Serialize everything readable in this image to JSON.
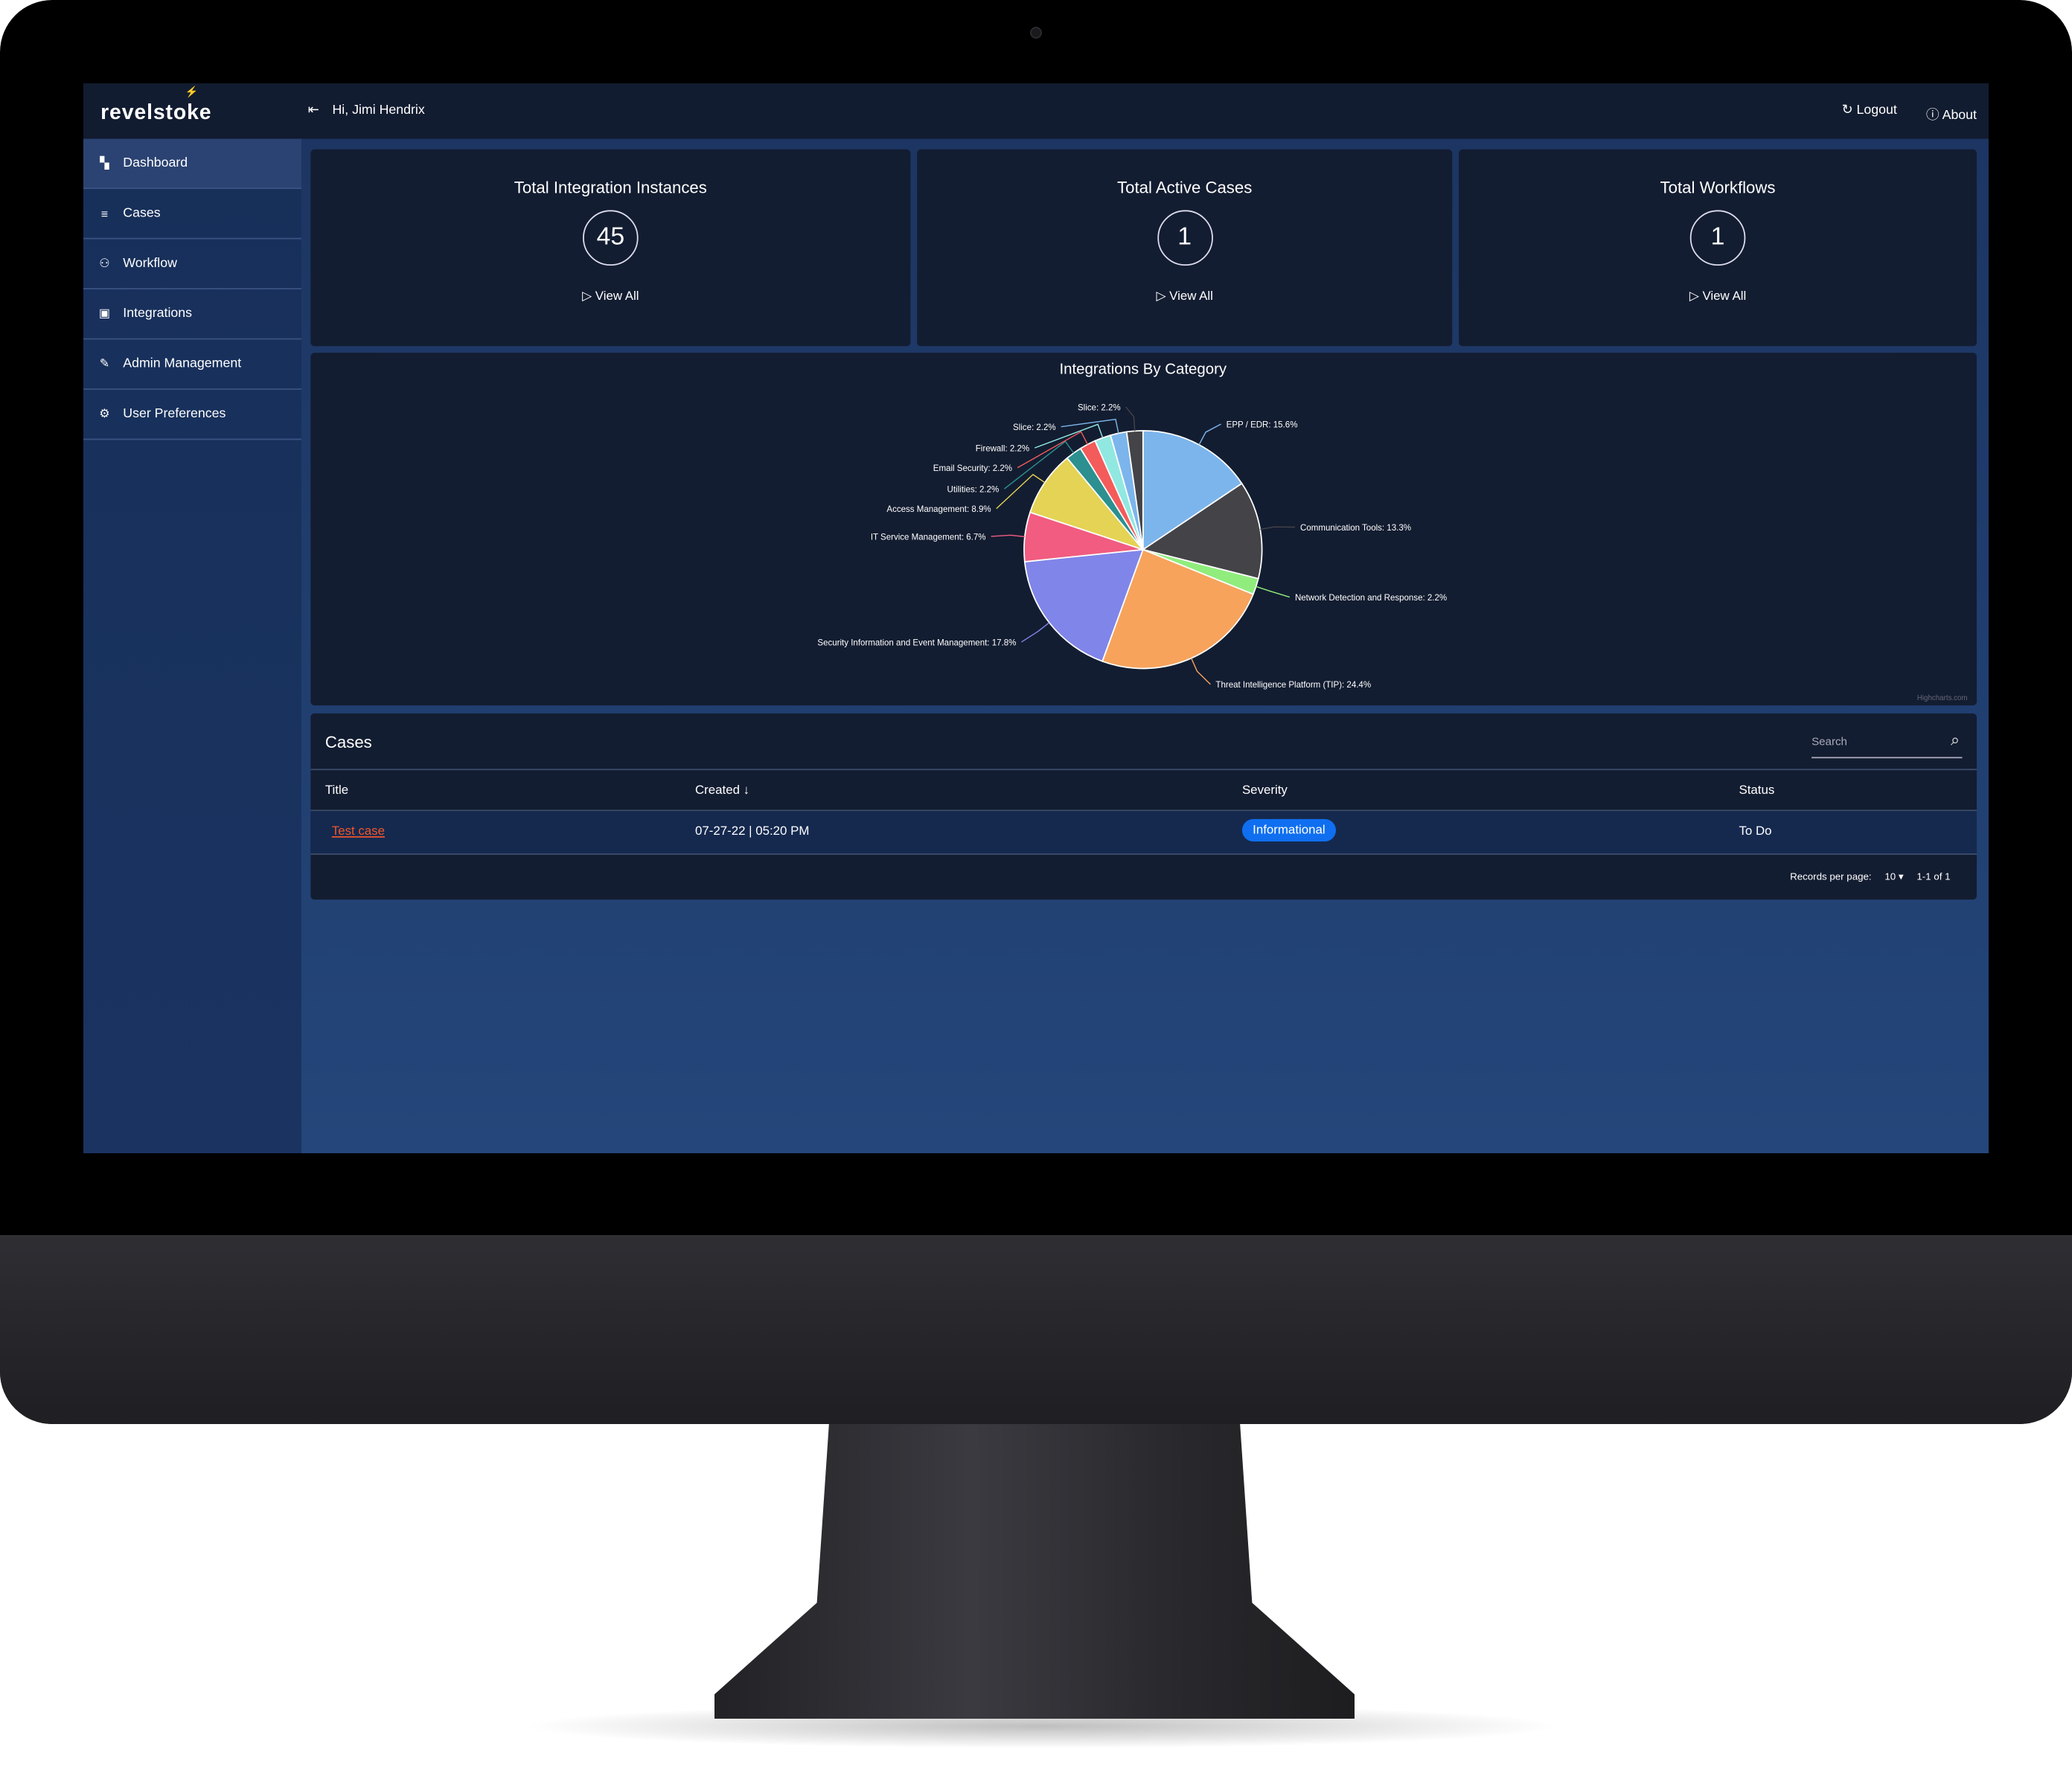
{
  "header": {
    "logo": "revelstoke",
    "greeting": "Hi, Jimi Hendrix",
    "logout": "Logout",
    "about": "About"
  },
  "sidebar": {
    "items": [
      {
        "label": "Dashboard",
        "icon": "dashboard-icon",
        "active": true
      },
      {
        "label": "Cases",
        "icon": "list-icon"
      },
      {
        "label": "Workflow",
        "icon": "sitemap-icon"
      },
      {
        "label": "Integrations",
        "icon": "plugin-icon"
      },
      {
        "label": "Admin Management",
        "icon": "wrench-icon"
      },
      {
        "label": "User Preferences",
        "icon": "gear-icon"
      }
    ]
  },
  "stats": [
    {
      "title": "Total Integration Instances",
      "value": "45",
      "link": "View All"
    },
    {
      "title": "Total Active Cases",
      "value": "1",
      "link": "View All"
    },
    {
      "title": "Total Workflows",
      "value": "1",
      "link": "View All"
    }
  ],
  "chart_data": {
    "type": "pie",
    "title": "Integrations By Category",
    "credit": "Highcharts.com",
    "unit": "%",
    "labels": [
      "EPP / EDR",
      "Communication Tools",
      "Network Detection and Response",
      "Threat Intelligence Platform (TIP)",
      "Security Information and Event Management",
      "IT Service Management",
      "Access Management",
      "Utilities",
      "Email Security",
      "Firewall",
      "Slice",
      "Slice"
    ],
    "values": [
      15.6,
      13.3,
      2.2,
      24.4,
      17.8,
      6.7,
      8.9,
      2.2,
      2.2,
      2.2,
      2.2,
      2.2
    ],
    "colors": [
      "#7cb5ec",
      "#434348",
      "#90ed7d",
      "#f7a35c",
      "#8085e9",
      "#f15c80",
      "#e4d354",
      "#2b908f",
      "#f45b5b",
      "#91e8e1",
      "#7cb5ec",
      "#434348"
    ]
  },
  "cases": {
    "title": "Cases",
    "search_placeholder": "Search",
    "columns": [
      "Title",
      "Created",
      "Severity",
      "Status"
    ],
    "sort_indicator": "↓",
    "rows": [
      {
        "title": "Test case",
        "created": "07-27-22 | 05:20 PM",
        "severity": "Informational",
        "status": "To Do"
      }
    ],
    "records_label": "Records per page:",
    "records_value": "10",
    "range": "1-1 of 1"
  },
  "colors": {
    "accent": "#0f6ff0",
    "link": "#f0562a"
  }
}
